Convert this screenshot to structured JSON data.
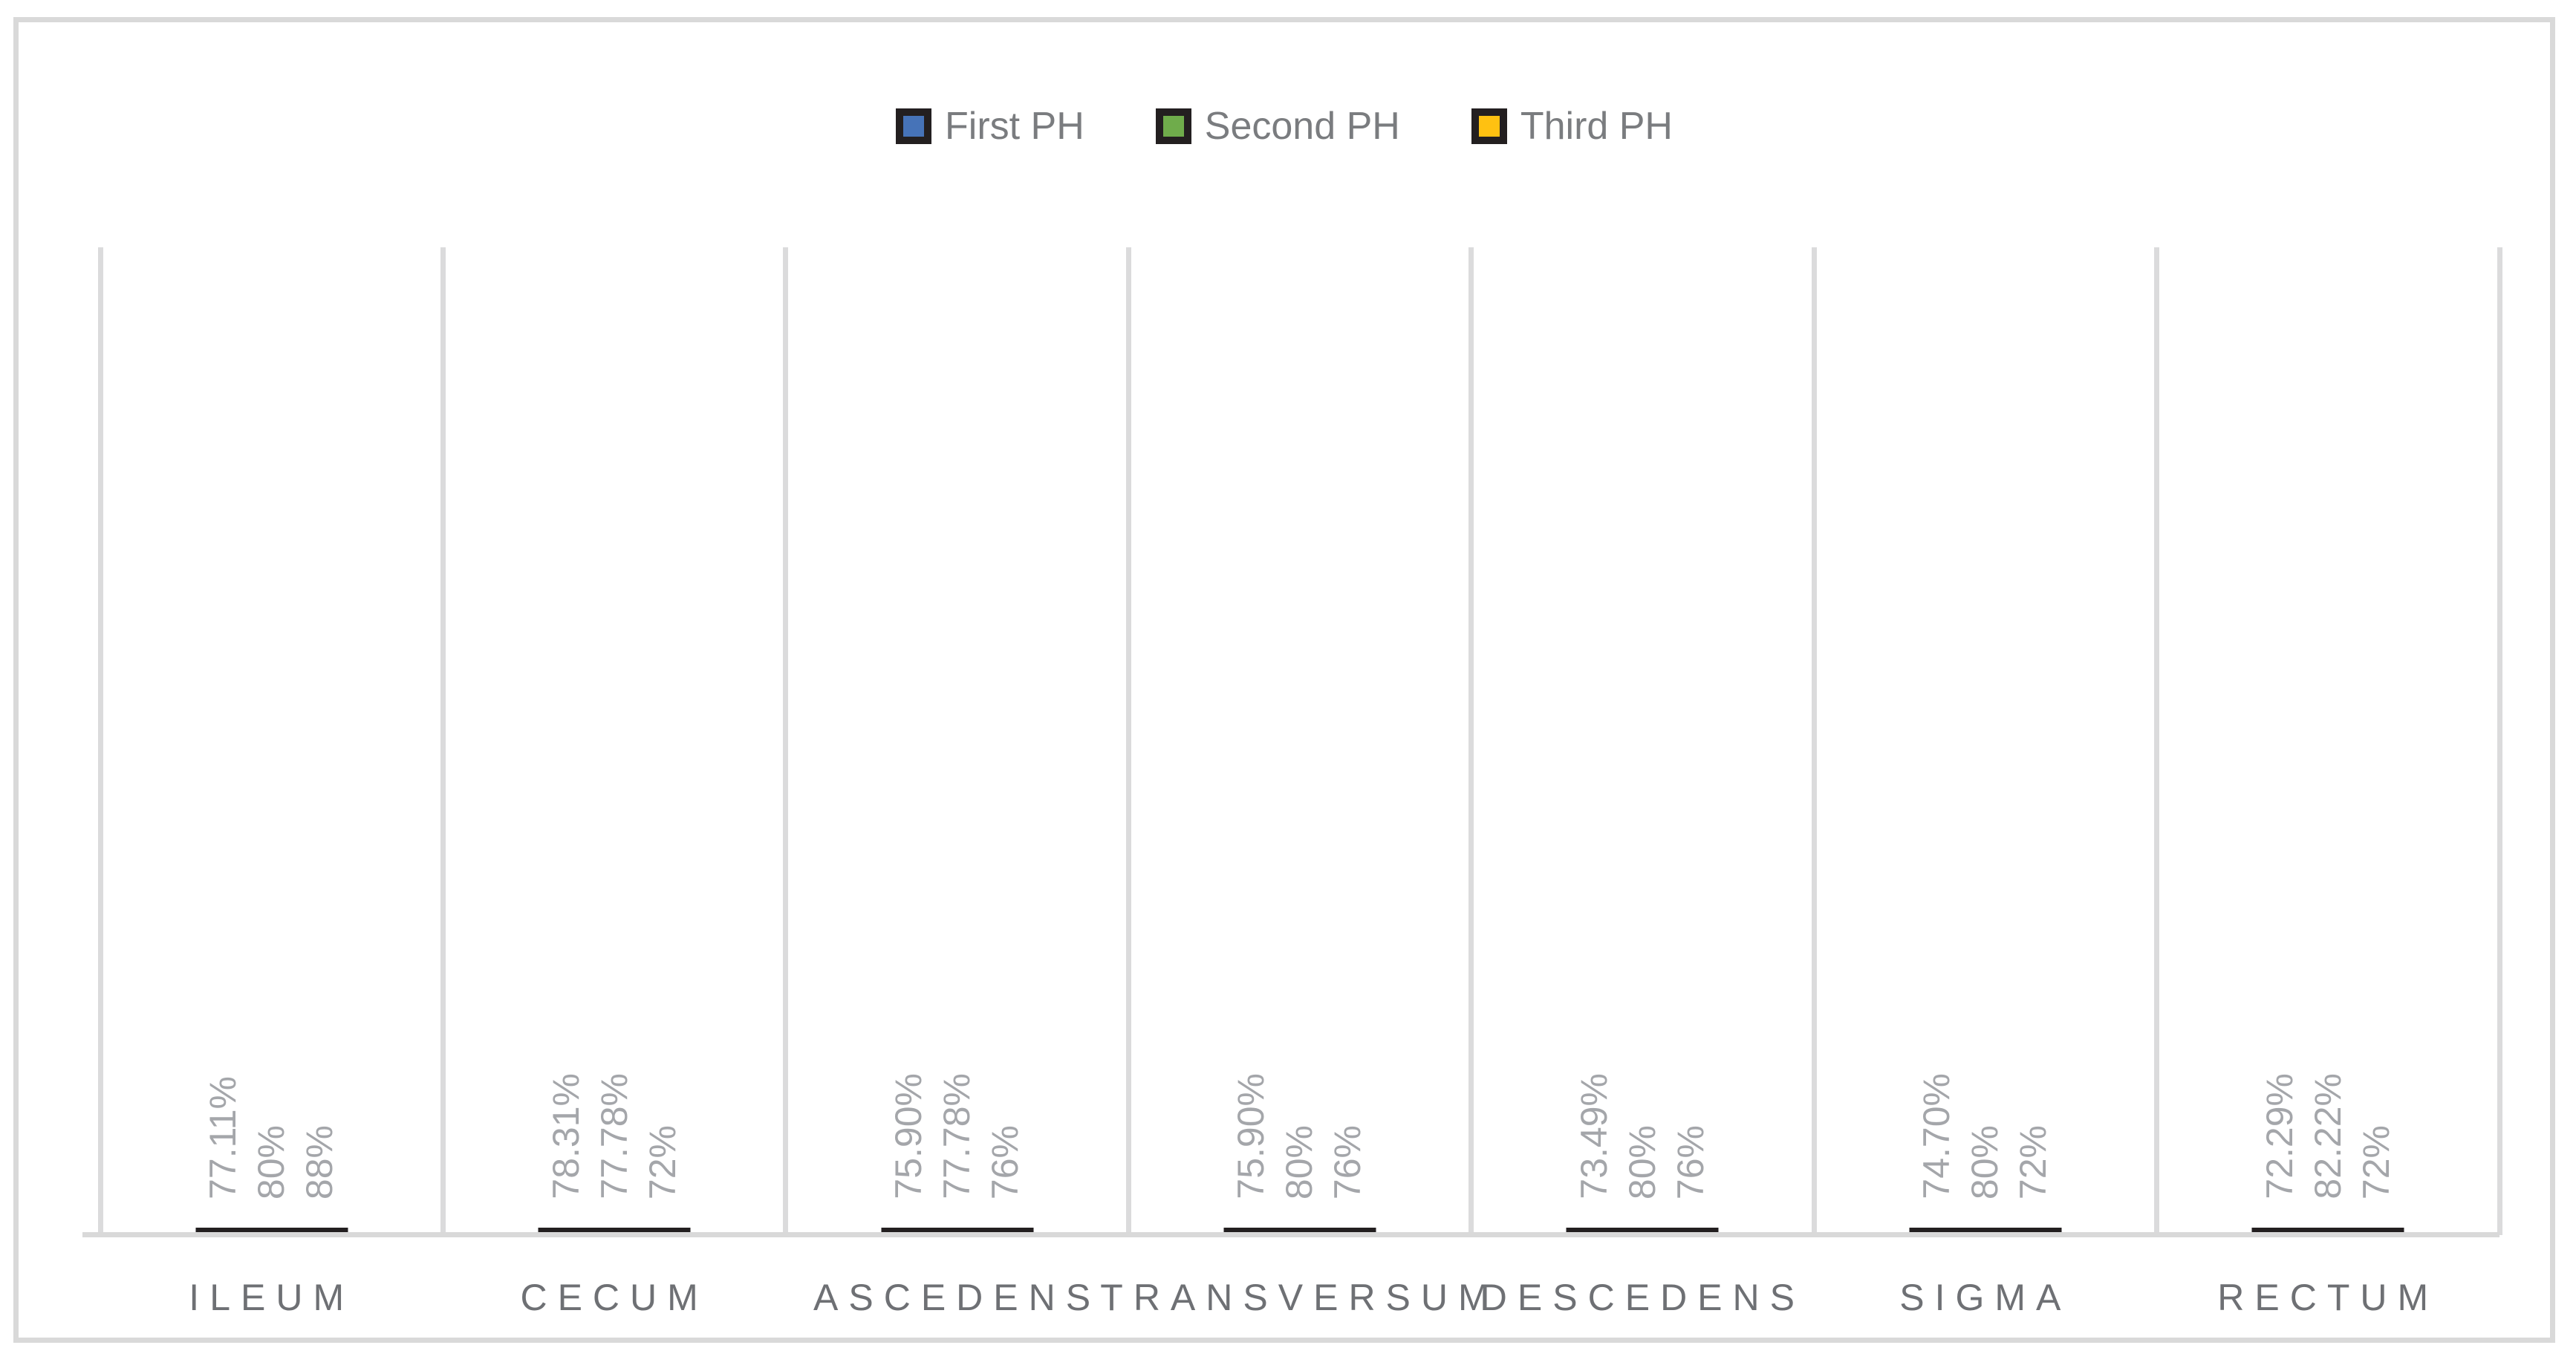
{
  "chart_data": {
    "type": "bar",
    "title": "",
    "xlabel": "",
    "ylabel": "",
    "ylim": [
      0,
      100
    ],
    "grid": "vertical category separators only",
    "legend_position": "top-center",
    "value_unit": "percent",
    "categories": [
      "ILEUM",
      "CECUM",
      "ASCEDENS",
      "TRANSVERSUM",
      "DESCEDENS",
      "SIGMA",
      "RECTUM"
    ],
    "series": [
      {
        "name": "First PH",
        "color": "#4673B8",
        "values": [
          77.11,
          78.31,
          75.9,
          75.9,
          73.49,
          74.7,
          72.29
        ],
        "labels": [
          "77.11%",
          "78.31%",
          "75.90%",
          "75.90%",
          "73.49%",
          "74.70%",
          "72.29%"
        ]
      },
      {
        "name": "Second PH",
        "color": "#6FAC4B",
        "values": [
          80,
          77.78,
          77.78,
          80,
          80,
          80,
          82.22
        ],
        "labels": [
          "80%",
          "77.78%",
          "77.78%",
          "80%",
          "80%",
          "80%",
          "82.22%"
        ]
      },
      {
        "name": "Third PH",
        "color": "#FFC111",
        "values": [
          88,
          72,
          76,
          76,
          76,
          72,
          72
        ],
        "labels": [
          "88%",
          "72%",
          "76%",
          "76%",
          "76%",
          "72%",
          "72%"
        ]
      }
    ]
  },
  "colors": {
    "bar_outline": "#231F20",
    "frame_border": "#D9D9D9",
    "gridline": "#DBDBDC",
    "axis_line": "#D9D9D9",
    "data_label_text": "#A4A6AA",
    "category_label_text": "#6E7074",
    "legend_text": "#7A7C7F",
    "background": "#FFFFFF"
  }
}
